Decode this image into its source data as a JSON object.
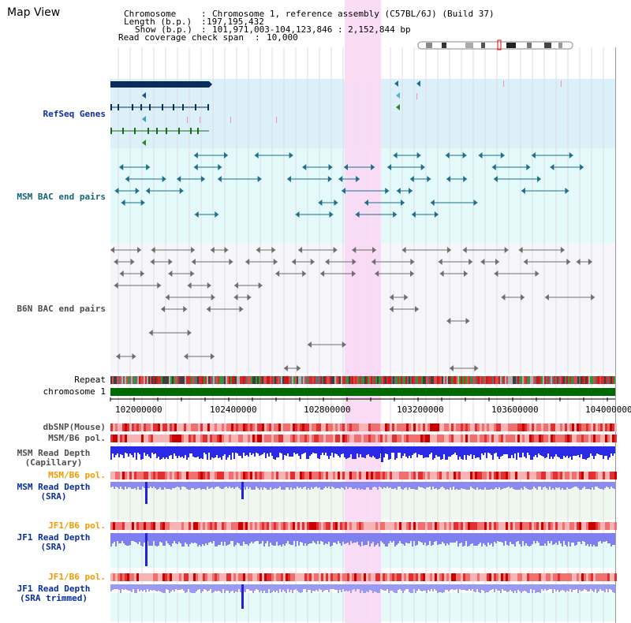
{
  "title": "Map View",
  "header": {
    "chromosome_label": "Chromosome",
    "chromosome_value": "Chromosome 1, reference assembly (C57BL/6J) (Build 37)",
    "length_label": "Length (b.p.)",
    "length_value": "197,195,432",
    "show_label": "Show (b.p.)",
    "show_value": "101,971,003-104,123,846 : 2,152,844 bp",
    "coverage_label": "Read coverage check span",
    "coverage_value": "10,000"
  },
  "tracks": {
    "refseq": "RefSeq Genes",
    "msm_bac": "MSM BAC end pairs",
    "b6n_bac": "B6N BAC end pairs",
    "repeat": "Repeat",
    "chromosome": "chromosome 1",
    "dbsnp": "dbSNP(Mouse)",
    "msm_pol": "MSM/B6 pol.",
    "msm_depth_cap_1": "MSM Read Depth",
    "msm_depth_cap_2": "(Capillary)",
    "msm_pol_sra": "MSM/B6 pol.",
    "msm_depth_sra_1": "MSM Read Depth",
    "msm_depth_sra_2": "(SRA)",
    "jf1_pol": "JF1/B6 pol.",
    "jf1_depth_1": "JF1 Read Depth",
    "jf1_depth_2": "(SRA)",
    "jf1_pol_trim": "JF1/B6 pol.",
    "jf1_trim_1": "JF1 Read Depth",
    "jf1_trim_2": "(SRA trimmed)"
  },
  "axis_ticks": [
    "102000000",
    "102400000",
    "102800000",
    "103200000",
    "103600000",
    "104000000"
  ],
  "colors": {
    "highlight": "#fbd8f4",
    "refseq_bg": "#dcf0fa",
    "bac_bg": "#e4fafa",
    "chromosome_bar": "#006a00",
    "depth_blue": "#2a2ae6",
    "depth_light": "#7f7ff0"
  }
}
